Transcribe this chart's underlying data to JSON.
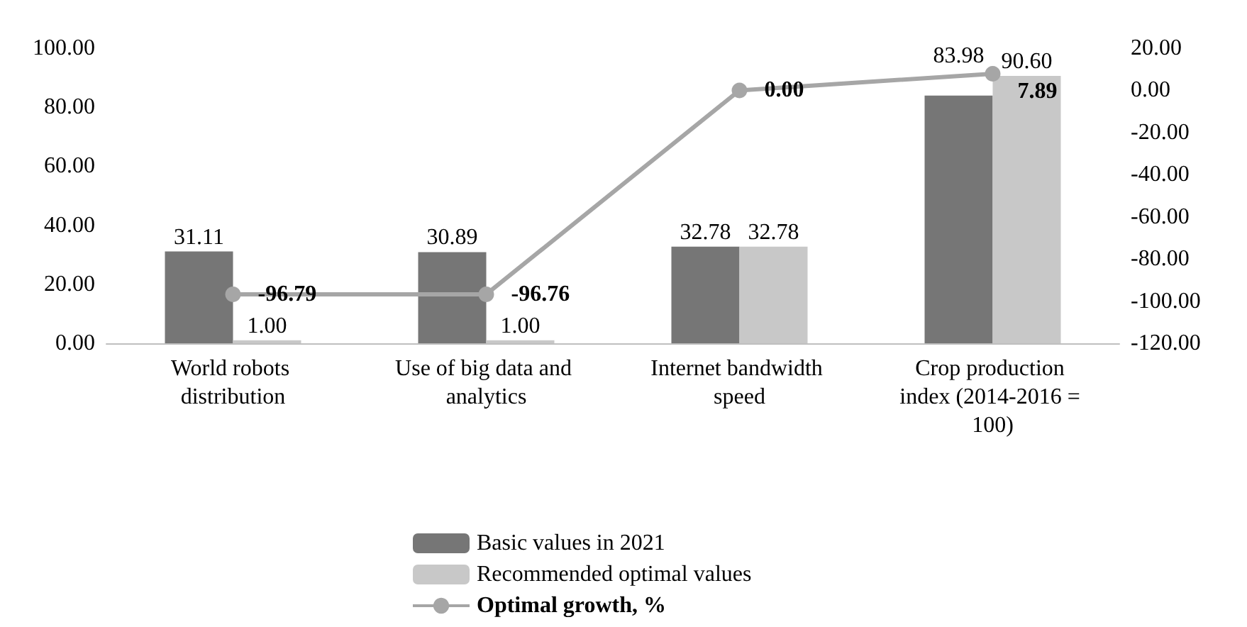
{
  "chart_data": {
    "type": "bar",
    "categories": [
      "World robots distribution",
      "Use of big data and analytics",
      "Internet bandwidth speed",
      "Crop production index (2014-2016 = 100)"
    ],
    "series": [
      {
        "name": "Basic values in 2021",
        "color": "#767676",
        "values": [
          31.11,
          30.89,
          32.78,
          83.98
        ],
        "value_labels": [
          "31.11",
          "30.89",
          "32.78",
          "83.98"
        ]
      },
      {
        "name": "Recommended optimal values",
        "color": "#c8c8c8",
        "values": [
          1.0,
          1.0,
          32.78,
          90.6
        ],
        "value_labels": [
          "1.00",
          "1.00",
          "32.78",
          "90.60"
        ]
      },
      {
        "name": "Optimal growth, %",
        "type": "line",
        "axis": "y2",
        "color": "#a6a6a6",
        "marker": "circle",
        "values": [
          -96.79,
          -96.76,
          0.0,
          7.89
        ],
        "value_labels": [
          "-96.79",
          "-96.76",
          "0.00",
          "7.89"
        ]
      }
    ],
    "ylim": [
      0,
      100
    ],
    "yticks": [
      {
        "value": 0,
        "label": "0.00"
      },
      {
        "value": 20,
        "label": "20.00"
      },
      {
        "value": 40,
        "label": "40.00"
      },
      {
        "value": 60,
        "label": "60.00"
      },
      {
        "value": 80,
        "label": "80.00"
      },
      {
        "value": 100,
        "label": "100.00"
      }
    ],
    "y2lim": [
      -120,
      20
    ],
    "y2ticks": [
      {
        "value": -120,
        "label": "-120.00"
      },
      {
        "value": -100,
        "label": "-100.00"
      },
      {
        "value": -80,
        "label": "-80.00"
      },
      {
        "value": -60,
        "label": "-60.00"
      },
      {
        "value": -40,
        "label": "-40.00"
      },
      {
        "value": -20,
        "label": "-20.00"
      },
      {
        "value": 0,
        "label": "0.00"
      },
      {
        "value": 20,
        "label": "20.00"
      }
    ],
    "legend": "bottom"
  }
}
